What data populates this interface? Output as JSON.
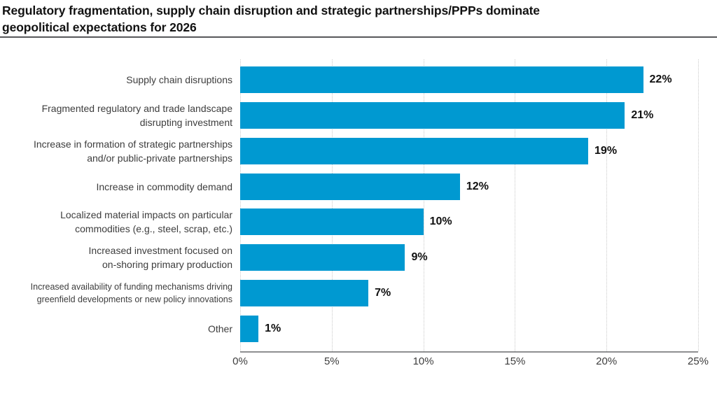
{
  "header": {
    "title_lines": [
      "Regulatory fragmentation, supply chain disruption and strategic partnerships/PPPs dominate",
      "geopolitical expectations for 2026"
    ]
  },
  "chart_data": {
    "type": "bar",
    "orientation": "horizontal",
    "title": "Regulatory fragmentation, supply chain disruption and strategic partnerships/PPPs dominate geopolitical expectations for 2026",
    "categories": [
      "Supply chain disruptions",
      "Fragmented regulatory and trade landscape\ndisrupting investment",
      "Increase in formation of strategic partnerships\nand/or public-private partnerships",
      "Increase in commodity demand",
      "Localized material impacts on particular\ncommodities (e.g., steel, scrap, etc.)",
      "Increased investment focused on\non-shoring primary production",
      "Increased availability of funding mechanisms driving\ngreenfield developments or new policy innovations",
      "Other"
    ],
    "values": [
      22,
      21,
      19,
      12,
      10,
      9,
      7,
      1
    ],
    "value_labels": [
      "22%",
      "21%",
      "19%",
      "12%",
      "10%",
      "9%",
      "7%",
      "1%"
    ],
    "xlabel": "",
    "ylabel": "",
    "xlim": [
      0,
      25
    ],
    "xticks": [
      0,
      5,
      10,
      15,
      20,
      25
    ],
    "xtick_labels": [
      "0%",
      "5%",
      "10%",
      "15%",
      "20%",
      "25%"
    ],
    "grid": "vertical-dotted",
    "legend": "none",
    "bar_color": "#0099d1"
  }
}
